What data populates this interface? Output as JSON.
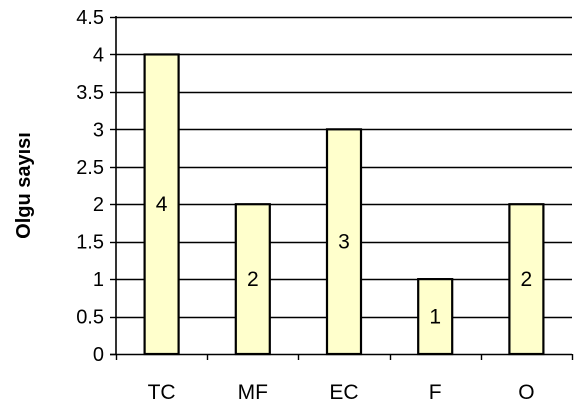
{
  "chart_data": {
    "type": "bar",
    "categories": [
      "TC",
      "MF",
      "EC",
      "F",
      "O"
    ],
    "values": [
      4,
      2,
      3,
      1,
      2
    ],
    "data_labels": [
      "4",
      "2",
      "3",
      "1",
      "2"
    ],
    "title": "",
    "xlabel": "",
    "ylabel": "Olgu sayısı",
    "ylim": [
      0,
      4.5
    ],
    "yticks": [
      0,
      0.5,
      1,
      1.5,
      2,
      2.5,
      3,
      3.5,
      4,
      4.5
    ],
    "ytick_labels": [
      "0",
      "0.5",
      "1",
      "1.5",
      "2",
      "2.5",
      "3",
      "3.5",
      "4",
      "4.5"
    ],
    "grid": "horizontal",
    "legend": "none",
    "colors": {
      "bar_fill": "#FFFFCC",
      "bar_stroke": "#000000",
      "grid": "#000000",
      "axis": "#000000"
    }
  }
}
